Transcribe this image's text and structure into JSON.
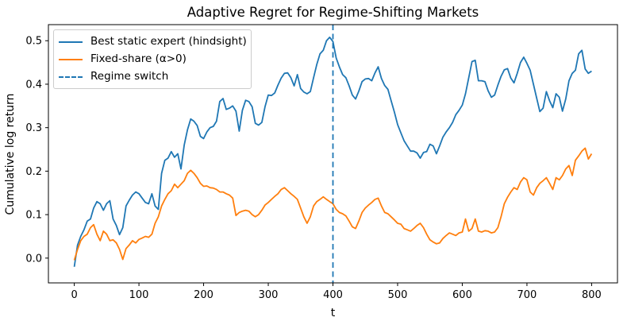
{
  "figure": {
    "title": "Adaptive Regret for Regime-Shifting Markets",
    "background_color": "#ffffff",
    "spine_color": "#000000"
  },
  "chart_data": {
    "type": "line",
    "title": "Adaptive Regret for Regime-Shifting Markets",
    "xlabel": "t",
    "ylabel": "Cumulative log return",
    "grid": false,
    "legend_position": "upper left",
    "xlim": [
      -40,
      840
    ],
    "ylim": [
      -0.057,
      0.537
    ],
    "x_ticks": [
      0,
      100,
      200,
      300,
      400,
      500,
      600,
      700,
      800
    ],
    "x_tick_labels": [
      "0",
      "100",
      "200",
      "300",
      "400",
      "500",
      "600",
      "700",
      "800"
    ],
    "y_ticks": [
      0.0,
      0.1,
      0.2,
      0.3,
      0.4,
      0.5
    ],
    "y_tick_labels": [
      "0.0",
      "0.1",
      "0.2",
      "0.3",
      "0.4",
      "0.5"
    ],
    "legend": [
      "Best static expert (hindsight)",
      "Fixed-share (α>0)",
      "Regime switch"
    ],
    "x_start": 0,
    "x_step": 5,
    "series": [
      {
        "name": "Best static expert (hindsight)",
        "color": "#1f77b4",
        "style": "solid",
        "values": [
          -0.02,
          0.03,
          0.05,
          0.065,
          0.085,
          0.09,
          0.115,
          0.13,
          0.125,
          0.11,
          0.125,
          0.132,
          0.09,
          0.075,
          0.054,
          0.07,
          0.12,
          0.133,
          0.145,
          0.152,
          0.148,
          0.138,
          0.128,
          0.125,
          0.148,
          0.12,
          0.112,
          0.195,
          0.225,
          0.23,
          0.245,
          0.232,
          0.24,
          0.205,
          0.26,
          0.295,
          0.32,
          0.315,
          0.305,
          0.28,
          0.275,
          0.29,
          0.3,
          0.303,
          0.315,
          0.36,
          0.367,
          0.342,
          0.345,
          0.35,
          0.338,
          0.292,
          0.34,
          0.363,
          0.36,
          0.348,
          0.31,
          0.306,
          0.312,
          0.348,
          0.375,
          0.374,
          0.38,
          0.398,
          0.414,
          0.425,
          0.426,
          0.415,
          0.396,
          0.422,
          0.39,
          0.382,
          0.378,
          0.383,
          0.415,
          0.445,
          0.47,
          0.478,
          0.5,
          0.508,
          0.498,
          0.46,
          0.44,
          0.422,
          0.415,
          0.396,
          0.375,
          0.366,
          0.384,
          0.406,
          0.412,
          0.413,
          0.408,
          0.426,
          0.44,
          0.413,
          0.397,
          0.388,
          0.362,
          0.336,
          0.307,
          0.288,
          0.27,
          0.258,
          0.246,
          0.246,
          0.242,
          0.23,
          0.243,
          0.245,
          0.262,
          0.258,
          0.24,
          0.258,
          0.278,
          0.29,
          0.3,
          0.312,
          0.33,
          0.34,
          0.352,
          0.378,
          0.415,
          0.452,
          0.455,
          0.408,
          0.408,
          0.406,
          0.385,
          0.37,
          0.375,
          0.398,
          0.418,
          0.433,
          0.436,
          0.414,
          0.403,
          0.425,
          0.45,
          0.462,
          0.448,
          0.432,
          0.4,
          0.368,
          0.337,
          0.345,
          0.383,
          0.362,
          0.346,
          0.378,
          0.37,
          0.338,
          0.366,
          0.408,
          0.425,
          0.432,
          0.47,
          0.478,
          0.435,
          0.425,
          0.43
        ]
      },
      {
        "name": "Fixed-share (α>0)",
        "color": "#ff7f0e",
        "style": "solid",
        "values": [
          -0.005,
          0.02,
          0.04,
          0.05,
          0.055,
          0.07,
          0.077,
          0.055,
          0.04,
          0.062,
          0.055,
          0.04,
          0.042,
          0.035,
          0.02,
          -0.003,
          0.022,
          0.03,
          0.04,
          0.035,
          0.043,
          0.046,
          0.05,
          0.048,
          0.055,
          0.08,
          0.095,
          0.12,
          0.135,
          0.148,
          0.155,
          0.17,
          0.162,
          0.17,
          0.178,
          0.195,
          0.202,
          0.195,
          0.185,
          0.172,
          0.165,
          0.166,
          0.162,
          0.161,
          0.158,
          0.152,
          0.152,
          0.148,
          0.145,
          0.138,
          0.098,
          0.105,
          0.108,
          0.11,
          0.108,
          0.1,
          0.095,
          0.1,
          0.11,
          0.122,
          0.128,
          0.135,
          0.142,
          0.148,
          0.158,
          0.162,
          0.155,
          0.148,
          0.142,
          0.135,
          0.115,
          0.095,
          0.08,
          0.095,
          0.12,
          0.13,
          0.135,
          0.141,
          0.135,
          0.13,
          0.125,
          0.112,
          0.105,
          0.102,
          0.097,
          0.085,
          0.072,
          0.068,
          0.085,
          0.105,
          0.115,
          0.122,
          0.128,
          0.135,
          0.138,
          0.12,
          0.105,
          0.102,
          0.095,
          0.088,
          0.08,
          0.078,
          0.068,
          0.065,
          0.062,
          0.068,
          0.075,
          0.08,
          0.07,
          0.055,
          0.042,
          0.037,
          0.033,
          0.035,
          0.045,
          0.052,
          0.058,
          0.055,
          0.052,
          0.058,
          0.06,
          0.09,
          0.062,
          0.068,
          0.09,
          0.062,
          0.06,
          0.063,
          0.062,
          0.058,
          0.06,
          0.07,
          0.095,
          0.125,
          0.14,
          0.152,
          0.162,
          0.158,
          0.175,
          0.185,
          0.18,
          0.152,
          0.145,
          0.162,
          0.172,
          0.178,
          0.185,
          0.172,
          0.158,
          0.185,
          0.18,
          0.19,
          0.205,
          0.213,
          0.19,
          0.225,
          0.235,
          0.246,
          0.253,
          0.228,
          0.24
        ]
      }
    ],
    "annotations": [
      {
        "name": "Regime switch",
        "type": "vline",
        "x": 400,
        "color": "#1f77b4",
        "style": "dashed"
      }
    ]
  }
}
